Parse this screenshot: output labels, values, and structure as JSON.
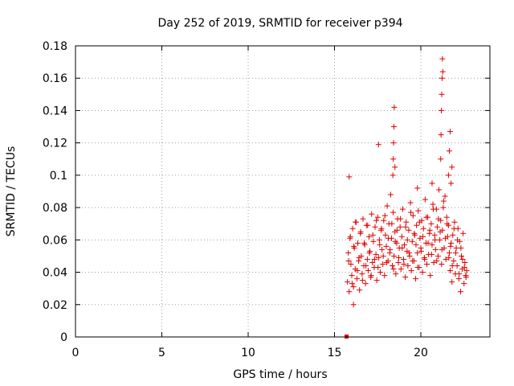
{
  "chart_data": {
    "type": "scatter",
    "title": "Day 252 of 2019, SRMTID for receiver p394",
    "xlabel": "GPS time / hours",
    "ylabel": "SRMTID / TECUs",
    "xlim": [
      0,
      24
    ],
    "ylim": [
      0,
      0.18
    ],
    "xticks": [
      0,
      5,
      10,
      15,
      20
    ],
    "xtick_labels": [
      "0",
      "5",
      "10",
      "15",
      "20"
    ],
    "yticks": [
      0,
      0.02,
      0.04,
      0.06,
      0.08,
      0.1,
      0.12,
      0.14,
      0.16,
      0.18
    ],
    "ytick_labels": [
      "0",
      "0.02",
      "0.04",
      "0.06",
      "0.08",
      "0.1",
      "0.12",
      "0.14",
      "0.16",
      "0.18"
    ],
    "grid": true,
    "marker": "+",
    "marker_color": "#e00000",
    "zero_marker": {
      "x": 15.7,
      "y": 0
    },
    "series": [
      {
        "name": "SRMTID",
        "x_start": 15.7,
        "x_end": 22.7,
        "y_typical_range": [
          0.02,
          0.09
        ],
        "x": [
          15.75,
          15.8,
          15.85,
          15.9,
          15.95,
          16.0,
          16.05,
          16.1,
          16.15,
          16.2,
          16.25,
          16.3,
          16.35,
          16.4,
          16.45,
          16.5,
          16.55,
          16.6,
          16.65,
          16.7,
          16.75,
          16.8,
          16.85,
          16.9,
          16.95,
          17.0,
          17.05,
          17.1,
          17.15,
          17.2,
          17.25,
          17.3,
          17.35,
          17.4,
          17.45,
          17.5,
          17.55,
          17.6,
          17.65,
          17.7,
          17.75,
          17.8,
          17.85,
          17.9,
          17.95,
          18.0,
          18.05,
          18.1,
          18.15,
          18.2,
          18.25,
          18.3,
          18.35,
          18.4,
          18.45,
          18.5,
          18.55,
          18.6,
          18.65,
          18.7,
          18.75,
          18.8,
          18.85,
          18.9,
          18.95,
          19.0,
          19.05,
          19.1,
          19.15,
          19.2,
          19.25,
          19.3,
          19.35,
          19.4,
          19.45,
          19.5,
          19.55,
          19.6,
          19.65,
          19.7,
          19.75,
          19.8,
          19.85,
          19.9,
          19.95,
          20.0,
          20.05,
          20.1,
          20.15,
          20.2,
          20.25,
          20.3,
          20.35,
          20.4,
          20.45,
          20.5,
          20.55,
          20.6,
          20.65,
          20.7,
          20.75,
          20.8,
          20.85,
          20.9,
          20.95,
          21.0,
          21.05,
          21.1,
          21.15,
          21.2,
          21.25,
          21.3,
          21.35,
          21.4,
          21.45,
          21.5,
          21.55,
          21.6,
          21.65,
          21.7,
          21.75,
          21.8,
          21.85,
          21.9,
          21.95,
          22.0,
          22.05,
          22.1,
          22.15,
          22.2,
          22.25,
          22.3,
          22.35,
          22.4,
          22.45,
          22.5,
          22.55,
          22.6,
          22.65,
          15.82,
          15.92,
          16.02,
          16.12,
          16.22,
          16.32,
          16.42,
          16.52,
          16.62,
          16.72,
          16.82,
          16.92,
          17.02,
          17.12,
          17.22,
          17.32,
          17.42,
          17.52,
          17.62,
          17.72,
          17.82,
          17.92,
          18.02,
          18.12,
          18.22,
          18.32,
          18.42,
          18.52,
          18.62,
          18.72,
          18.82,
          18.92,
          19.02,
          19.12,
          19.22,
          19.32,
          19.42,
          19.52,
          19.62,
          19.72,
          19.82,
          19.92,
          20.02,
          20.12,
          20.22,
          20.32,
          20.42,
          20.52,
          20.62,
          20.72,
          20.82,
          20.92,
          21.02,
          21.12,
          21.22,
          21.32,
          21.42,
          21.52,
          21.62,
          21.72,
          21.82,
          21.92,
          22.02,
          22.12,
          22.22,
          22.32,
          22.42,
          22.52,
          22.62,
          18.38,
          18.4,
          18.42,
          18.44,
          18.46,
          18.5,
          17.55,
          21.15,
          21.17,
          21.19,
          21.21,
          21.23,
          21.25,
          21.27,
          21.6,
          21.65,
          21.7,
          21.75,
          21.8,
          16.1,
          15.85,
          20.65,
          19.8
        ],
        "y": [
          0.034,
          0.052,
          0.028,
          0.061,
          0.045,
          0.038,
          0.067,
          0.031,
          0.055,
          0.042,
          0.071,
          0.036,
          0.058,
          0.047,
          0.029,
          0.064,
          0.05,
          0.039,
          0.073,
          0.044,
          0.057,
          0.033,
          0.069,
          0.048,
          0.041,
          0.062,
          0.053,
          0.037,
          0.076,
          0.046,
          0.059,
          0.043,
          0.068,
          0.051,
          0.035,
          0.074,
          0.049,
          0.06,
          0.04,
          0.066,
          0.054,
          0.045,
          0.072,
          0.038,
          0.063,
          0.056,
          0.081,
          0.047,
          0.07,
          0.052,
          0.088,
          0.061,
          0.044,
          0.077,
          0.05,
          0.065,
          0.039,
          0.058,
          0.073,
          0.046,
          0.055,
          0.068,
          0.042,
          0.062,
          0.079,
          0.048,
          0.057,
          0.037,
          0.071,
          0.053,
          0.044,
          0.066,
          0.05,
          0.083,
          0.041,
          0.059,
          0.075,
          0.047,
          0.063,
          0.036,
          0.069,
          0.052,
          0.078,
          0.043,
          0.061,
          0.055,
          0.072,
          0.04,
          0.067,
          0.049,
          0.085,
          0.058,
          0.045,
          0.074,
          0.051,
          0.064,
          0.038,
          0.07,
          0.057,
          0.082,
          0.046,
          0.063,
          0.054,
          0.079,
          0.068,
          0.05,
          0.091,
          0.06,
          0.072,
          0.045,
          0.066,
          0.08,
          0.055,
          0.087,
          0.048,
          0.074,
          0.062,
          0.069,
          0.052,
          0.041,
          0.058,
          0.034,
          0.063,
          0.047,
          0.071,
          0.039,
          0.055,
          0.044,
          0.067,
          0.036,
          0.059,
          0.028,
          0.05,
          0.042,
          0.064,
          0.033,
          0.046,
          0.038,
          0.041,
          0.047,
          0.062,
          0.033,
          0.056,
          0.071,
          0.041,
          0.049,
          0.065,
          0.035,
          0.058,
          0.044,
          0.069,
          0.052,
          0.038,
          0.063,
          0.048,
          0.072,
          0.043,
          0.057,
          0.067,
          0.05,
          0.075,
          0.046,
          0.061,
          0.054,
          0.07,
          0.042,
          0.059,
          0.066,
          0.049,
          0.073,
          0.055,
          0.045,
          0.068,
          0.06,
          0.052,
          0.077,
          0.047,
          0.064,
          0.057,
          0.043,
          0.071,
          0.053,
          0.062,
          0.048,
          0.074,
          0.058,
          0.066,
          0.051,
          0.079,
          0.06,
          0.047,
          0.073,
          0.065,
          0.054,
          0.084,
          0.061,
          0.07,
          0.049,
          0.056,
          0.044,
          0.067,
          0.052,
          0.06,
          0.039,
          0.055,
          0.048,
          0.043,
          0.037,
          0.1,
          0.11,
          0.12,
          0.13,
          0.142,
          0.105,
          0.119,
          0.11,
          0.125,
          0.14,
          0.15,
          0.16,
          0.172,
          0.164,
          0.1,
          0.115,
          0.127,
          0.095,
          0.105,
          0.02,
          0.099,
          0.095,
          0.092
        ]
      }
    ]
  }
}
